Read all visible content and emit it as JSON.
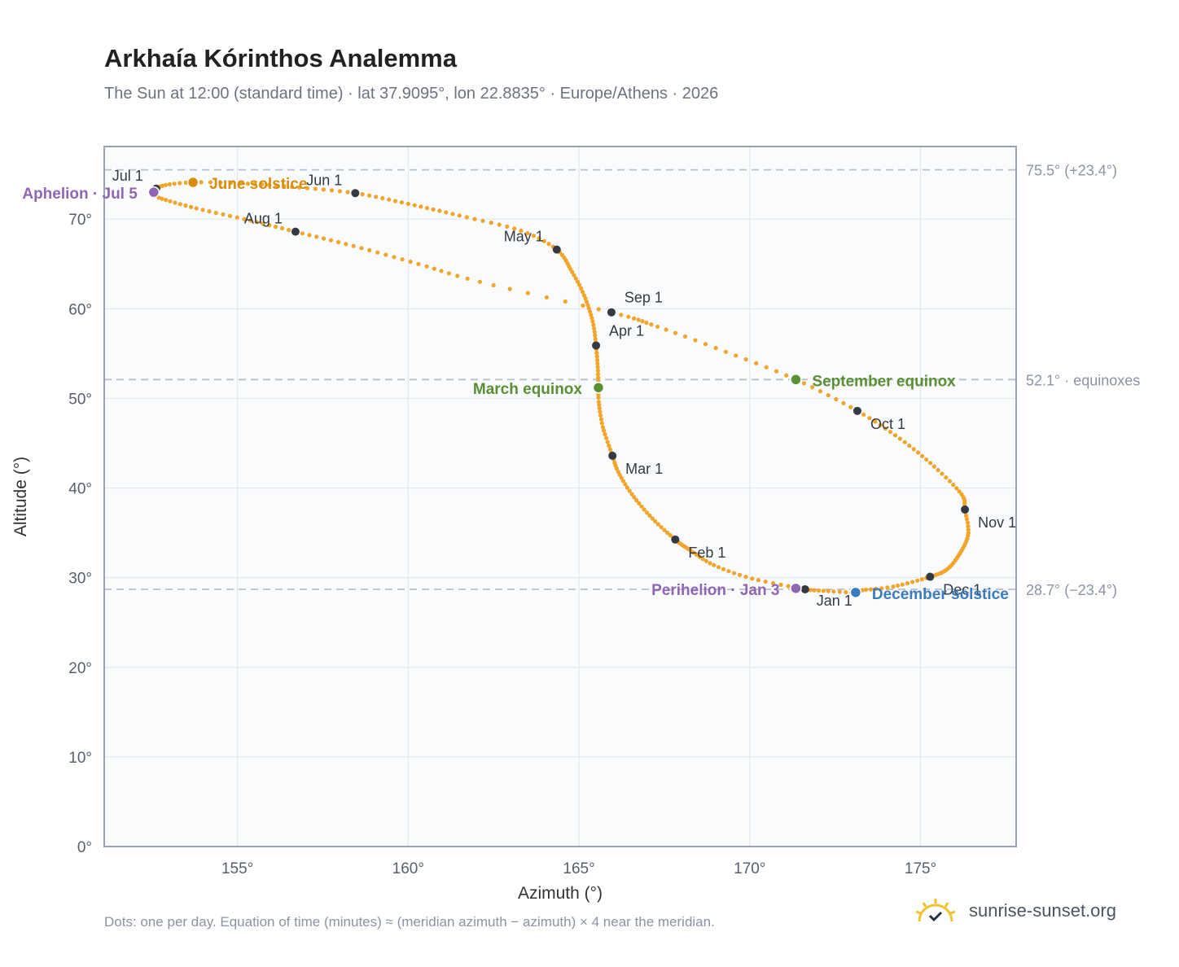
{
  "header": {
    "title": "Arkhaía Kórinthos Analemma",
    "subtitle": "The Sun at 12:00 (standard time) · lat 37.9095°, lon 22.8835° · Europe/Athens · 2026"
  },
  "footer": {
    "note": "Dots: one per day. Equation of time (minutes) ≈ (meridian azimuth − azimuth) × 4 near the meridian.",
    "brand": "sunrise-sunset.org"
  },
  "colors": {
    "path": "#f2a52a",
    "month_marker": "#333a44",
    "solstice_june": "#d98c0a",
    "solstice_december": "#3a7bbf",
    "equinox": "#5a8f34",
    "apsis": "#8f66b3",
    "grid": "#e2e8f0",
    "reference_line": "#b8c2cc",
    "plot_bg": "#f9fbfd",
    "frame": "#97a3b3"
  },
  "chart_data": {
    "type": "scatter",
    "title": "Arkhaía Kórinthos Analemma",
    "xlabel": "Azimuth (°)",
    "ylabel": "Altitude (°)",
    "xlim": [
      151.1,
      177.8
    ],
    "ylim": [
      0,
      78.1
    ],
    "xticks": [
      155,
      160,
      165,
      170,
      175
    ],
    "yticks": [
      0,
      10,
      20,
      30,
      40,
      50,
      60,
      70
    ],
    "xtick_labels": [
      "155°",
      "160°",
      "165°",
      "170°",
      "175°"
    ],
    "ytick_labels": [
      "0°",
      "10°",
      "20°",
      "30°",
      "40°",
      "50°",
      "60°",
      "70°"
    ],
    "grid": true,
    "reference_lines": [
      {
        "y": 75.5,
        "label": "75.5° (+23.4°)"
      },
      {
        "y": 52.1,
        "label": "52.1° · equinoxes"
      },
      {
        "y": 28.7,
        "label": "28.7° (−23.4°)"
      }
    ],
    "daily_path": [
      {
        "day": 1,
        "az": 171.62,
        "alt": 28.7
      },
      {
        "day": 9,
        "az": 170.07,
        "alt": 29.9
      },
      {
        "day": 16,
        "az": 168.95,
        "alt": 31.4
      },
      {
        "day": 24,
        "az": 168.2,
        "alt": 33.2
      },
      {
        "day": 32,
        "az": 167.82,
        "alt": 34.25
      },
      {
        "day": 40,
        "az": 167.15,
        "alt": 36.6
      },
      {
        "day": 48,
        "az": 166.55,
        "alt": 39.3
      },
      {
        "day": 55,
        "az": 166.15,
        "alt": 41.8
      },
      {
        "day": 60,
        "az": 165.98,
        "alt": 43.6
      },
      {
        "day": 68,
        "az": 165.7,
        "alt": 46.8
      },
      {
        "day": 75,
        "az": 165.58,
        "alt": 49.6
      },
      {
        "day": 79,
        "az": 165.57,
        "alt": 51.2
      },
      {
        "day": 85,
        "az": 165.55,
        "alt": 53.5
      },
      {
        "day": 91,
        "az": 165.5,
        "alt": 55.9
      },
      {
        "day": 98,
        "az": 165.4,
        "alt": 58.6
      },
      {
        "day": 106,
        "az": 165.15,
        "alt": 61.5
      },
      {
        "day": 113,
        "az": 164.8,
        "alt": 64.1
      },
      {
        "day": 121,
        "az": 164.35,
        "alt": 66.6
      },
      {
        "day": 128,
        "az": 163.3,
        "alt": 68.7
      },
      {
        "day": 136,
        "az": 161.5,
        "alt": 70.4
      },
      {
        "day": 144,
        "az": 160.0,
        "alt": 71.7
      },
      {
        "day": 152,
        "az": 158.45,
        "alt": 72.9
      },
      {
        "day": 160,
        "az": 156.6,
        "alt": 73.6
      },
      {
        "day": 167,
        "az": 155.1,
        "alt": 74.0
      },
      {
        "day": 172,
        "az": 153.7,
        "alt": 74.1
      },
      {
        "day": 177,
        "az": 152.9,
        "alt": 73.8
      },
      {
        "day": 182,
        "az": 152.62,
        "alt": 73.4
      },
      {
        "day": 186,
        "az": 152.55,
        "alt": 73.0
      },
      {
        "day": 190,
        "az": 152.7,
        "alt": 72.4
      },
      {
        "day": 198,
        "az": 153.8,
        "alt": 71.2
      },
      {
        "day": 205,
        "az": 155.2,
        "alt": 70.0
      },
      {
        "day": 213,
        "az": 156.7,
        "alt": 68.6
      },
      {
        "day": 221,
        "az": 158.4,
        "alt": 67.0
      },
      {
        "day": 229,
        "az": 160.3,
        "alt": 65.0
      },
      {
        "day": 236,
        "az": 162.1,
        "alt": 63.0
      },
      {
        "day": 244,
        "az": 165.95,
        "alt": 59.6
      },
      {
        "day": 252,
        "az": 167.3,
        "alt": 58.0
      },
      {
        "day": 259,
        "az": 169.3,
        "alt": 55.2
      },
      {
        "day": 266,
        "az": 171.35,
        "alt": 52.1
      },
      {
        "day": 274,
        "az": 173.15,
        "alt": 48.6
      },
      {
        "day": 282,
        "az": 174.4,
        "alt": 45.5
      },
      {
        "day": 290,
        "az": 175.4,
        "alt": 42.4
      },
      {
        "day": 298,
        "az": 176.2,
        "alt": 39.3
      },
      {
        "day": 305,
        "az": 176.3,
        "alt": 37.6
      },
      {
        "day": 312,
        "az": 176.4,
        "alt": 35.0
      },
      {
        "day": 319,
        "az": 176.2,
        "alt": 33.0
      },
      {
        "day": 327,
        "az": 175.8,
        "alt": 31.0
      },
      {
        "day": 335,
        "az": 175.28,
        "alt": 30.1
      },
      {
        "day": 343,
        "az": 174.2,
        "alt": 29.0
      },
      {
        "day": 349,
        "az": 173.3,
        "alt": 28.6
      },
      {
        "day": 355,
        "az": 173.1,
        "alt": 28.35
      },
      {
        "day": 360,
        "az": 172.3,
        "alt": 28.5
      },
      {
        "day": 365,
        "az": 171.7,
        "alt": 28.65
      }
    ],
    "month_markers": [
      {
        "label": "Jan 1",
        "az": 171.62,
        "alt": 28.7,
        "anchor": "below"
      },
      {
        "label": "Feb 1",
        "az": 167.82,
        "alt": 34.25,
        "anchor": "below-right"
      },
      {
        "label": "Mar 1",
        "az": 165.98,
        "alt": 43.6,
        "anchor": "below-right"
      },
      {
        "label": "Apr 1",
        "az": 165.5,
        "alt": 55.9,
        "anchor": "above-right"
      },
      {
        "label": "May 1",
        "az": 164.35,
        "alt": 66.6,
        "anchor": "above-left"
      },
      {
        "label": "Jun 1",
        "az": 158.45,
        "alt": 72.9,
        "anchor": "above-left"
      },
      {
        "label": "Jul 1",
        "az": 152.62,
        "alt": 73.4,
        "anchor": "above-left"
      },
      {
        "label": "Aug 1",
        "az": 156.7,
        "alt": 68.6,
        "anchor": "above-left"
      },
      {
        "label": "Sep 1",
        "az": 165.95,
        "alt": 59.6,
        "anchor": "above-right"
      },
      {
        "label": "Oct 1",
        "az": 173.15,
        "alt": 48.6,
        "anchor": "below-right"
      },
      {
        "label": "Nov 1",
        "az": 176.3,
        "alt": 37.6,
        "anchor": "below-right"
      },
      {
        "label": "Dec 1",
        "az": 175.28,
        "alt": 30.1,
        "anchor": "below-right"
      }
    ],
    "events": [
      {
        "label": "June solstice",
        "az": 153.7,
        "alt": 74.1,
        "color": "#d98c0a",
        "side": "right"
      },
      {
        "label": "December solstice",
        "az": 173.1,
        "alt": 28.35,
        "color": "#3a7bbf",
        "side": "right"
      },
      {
        "label": "March equinox",
        "az": 165.57,
        "alt": 51.2,
        "color": "#5a8f34",
        "side": "left"
      },
      {
        "label": "September equinox",
        "az": 171.35,
        "alt": 52.1,
        "color": "#5a8f34",
        "side": "right"
      },
      {
        "label": "Aphelion · Jul 5",
        "az": 152.55,
        "alt": 73.0,
        "color": "#8f66b3",
        "side": "left"
      },
      {
        "label": "Perihelion · Jan 3",
        "az": 171.35,
        "alt": 28.8,
        "color": "#8f66b3",
        "side": "left"
      }
    ]
  }
}
